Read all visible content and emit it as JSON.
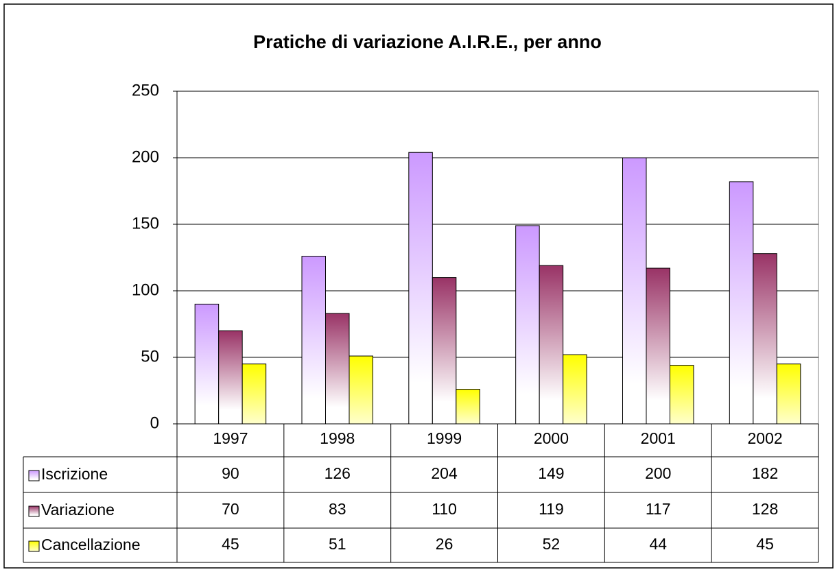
{
  "chart_data": {
    "type": "bar",
    "title": "Pratiche di variazione A.I.R.E., per anno",
    "categories": [
      "1997",
      "1998",
      "1999",
      "2000",
      "2001",
      "2002"
    ],
    "series": [
      {
        "name": "Iscrizione",
        "color": "#cc99ff",
        "values": [
          90,
          126,
          204,
          149,
          200,
          182
        ]
      },
      {
        "name": "Variazione",
        "color": "#993366",
        "values": [
          70,
          83,
          110,
          119,
          117,
          128
        ]
      },
      {
        "name": "Cancellazione",
        "color": "#ffff00",
        "values": [
          45,
          51,
          26,
          52,
          44,
          45
        ]
      }
    ],
    "ylim": [
      0,
      250
    ],
    "yticks": [
      0,
      50,
      100,
      150,
      200,
      250
    ],
    "grid": true
  }
}
